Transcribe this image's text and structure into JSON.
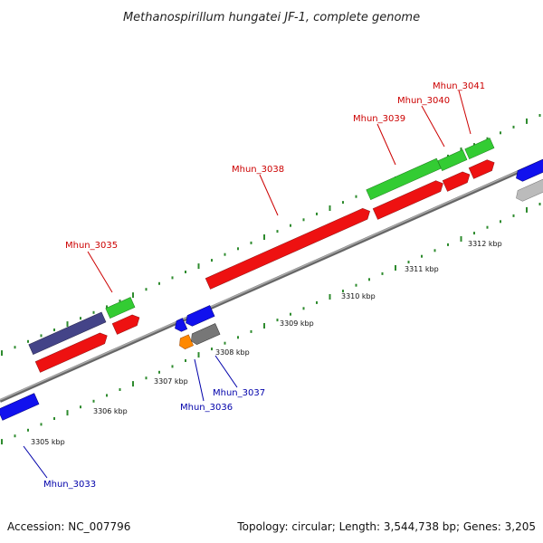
{
  "title": "Methanospirillum hungatei JF-1, complete genome",
  "footer": {
    "accession": "Accession: NC_007796",
    "summary": "Topology: circular; Length: 3,544,738 bp; Genes: 3,205"
  },
  "colors": {
    "backbone": "#888888",
    "tick": "#2e8b2e",
    "forward_label": "#cc0000",
    "reverse_label": "#0000aa",
    "red": "#ee1111",
    "green": "#33cc33",
    "blue": "#1111ee",
    "navy": "#444488",
    "orange": "#ff8800",
    "gray": "#777777",
    "lightgray": "#bbbbbb"
  },
  "kbp_ticks": [
    "3305 kbp",
    "3306 kbp",
    "3307 kbp",
    "3308 kbp",
    "3309 kbp",
    "3310 kbp",
    "3311 kbp",
    "3312 kbp"
  ],
  "forward_labels": [
    "Mhun_3035",
    "Mhun_3038",
    "Mhun_3039",
    "Mhun_3040",
    "Mhun_3041"
  ],
  "reverse_labels": [
    "Mhun_3033",
    "Mhun_3036",
    "Mhun_3037"
  ]
}
